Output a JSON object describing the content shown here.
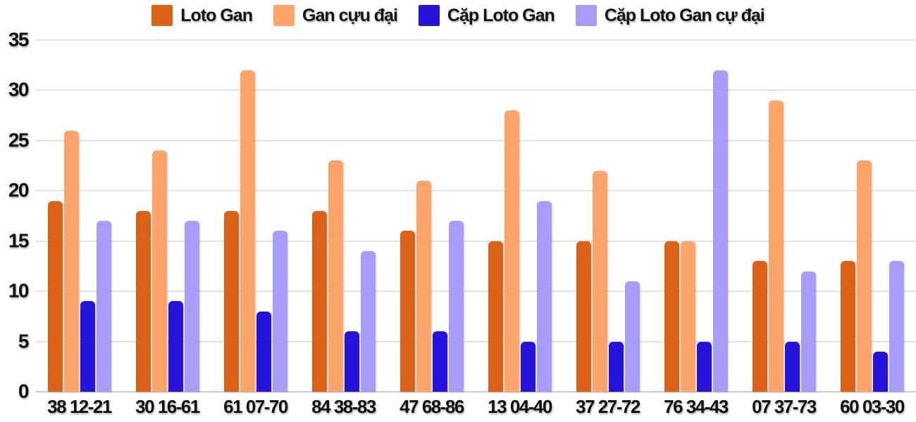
{
  "legend": [
    {
      "label": "Loto Gan",
      "color": "#DB6116"
    },
    {
      "label": "Gan cựu đại",
      "color": "#FCA469"
    },
    {
      "label": "Cặp Loto Gan",
      "color": "#2614DC"
    },
    {
      "label": "Cặp Loto Gan cự đại",
      "color": "#A79CF7"
    }
  ],
  "chart_data": {
    "type": "bar",
    "title": "",
    "categories": [
      "38 12-21",
      "30 16-61",
      "61 07-70",
      "84 38-83",
      "47 68-86",
      "13 04-40",
      "37 27-72",
      "76 34-43",
      "07 37-73",
      "60 03-30"
    ],
    "series": [
      {
        "name": "Loto Gan",
        "color": "#DB6116",
        "values": [
          19,
          18,
          18,
          18,
          16,
          15,
          15,
          15,
          13,
          13
        ]
      },
      {
        "name": "Gan cựu đại",
        "color": "#FCA469",
        "values": [
          26,
          24,
          32,
          23,
          21,
          28,
          22,
          15,
          29,
          23
        ]
      },
      {
        "name": "Cặp Loto Gan",
        "color": "#2614DC",
        "values": [
          9,
          9,
          8,
          6,
          6,
          5,
          5,
          5,
          5,
          4
        ]
      },
      {
        "name": "Cặp Loto Gan cự đại",
        "color": "#A79CF7",
        "values": [
          17,
          17,
          16,
          14,
          17,
          19,
          11,
          32,
          12,
          13
        ]
      }
    ],
    "y_axis": {
      "min": 0,
      "max": 35,
      "step": 5,
      "ticks": [
        0,
        5,
        10,
        15,
        20,
        25,
        30,
        35
      ]
    },
    "xlabel": "",
    "ylabel": "",
    "grid": true,
    "grid_color": "#E2E2E2",
    "legend_position": "top",
    "background": "#FFFFFF"
  }
}
